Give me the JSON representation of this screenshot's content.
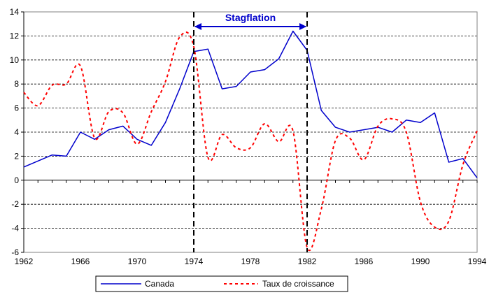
{
  "chart_data": {
    "type": "line",
    "title": "",
    "xlabel": "",
    "ylabel": "",
    "xlim": [
      1962,
      1994
    ],
    "ylim": [
      -6,
      14
    ],
    "x_ticks": [
      1962,
      1966,
      1970,
      1974,
      1978,
      1982,
      1986,
      1990,
      1994
    ],
    "y_ticks": [
      -6,
      -4,
      -2,
      0,
      2,
      4,
      6,
      8,
      10,
      12,
      14
    ],
    "grid": "horizontal-dashed",
    "legend_position": "bottom",
    "series": [
      {
        "name": "Canada",
        "color": "#0000cc",
        "style": "solid",
        "x": [
          1962,
          1963,
          1964,
          1965,
          1966,
          1967,
          1968,
          1969,
          1970,
          1971,
          1972,
          1973,
          1974,
          1975,
          1976,
          1977,
          1978,
          1979,
          1980,
          1981,
          1982,
          1983,
          1984,
          1985,
          1986,
          1987,
          1988,
          1989,
          1990,
          1991,
          1992,
          1993,
          1994
        ],
        "values": [
          1.1,
          1.6,
          2.1,
          2.0,
          4.0,
          3.4,
          4.2,
          4.5,
          3.4,
          2.9,
          4.8,
          7.6,
          10.7,
          10.9,
          7.6,
          7.8,
          9.0,
          9.2,
          10.1,
          12.4,
          10.8,
          5.8,
          4.4,
          4.0,
          4.2,
          4.4,
          4.0,
          5.0,
          4.8,
          5.6,
          1.5,
          1.8,
          0.2
        ]
      },
      {
        "name": "Taux de croissance",
        "color": "#ff0000",
        "style": "dashed",
        "x": [
          1962,
          1963,
          1964,
          1965,
          1966,
          1967,
          1968,
          1969,
          1970,
          1971,
          1972,
          1973,
          1974,
          1975,
          1976,
          1977,
          1978,
          1979,
          1980,
          1981,
          1982,
          1983,
          1984,
          1985,
          1986,
          1987,
          1988,
          1989,
          1990,
          1991,
          1992,
          1993,
          1994
        ],
        "values": [
          7.3,
          6.2,
          7.9,
          8.0,
          9.5,
          3.5,
          5.7,
          5.6,
          3.0,
          5.7,
          8.2,
          11.9,
          11.1,
          1.9,
          3.8,
          2.7,
          2.7,
          4.7,
          3.2,
          4.1,
          -5.6,
          -2.4,
          3.3,
          3.5,
          1.7,
          4.5,
          5.1,
          4.0,
          -1.8,
          -3.9,
          -3.4,
          1.3,
          4.1
        ]
      }
    ],
    "annotations": {
      "vlines": [
        1974,
        1982
      ],
      "span_label": "Stagflation"
    }
  }
}
